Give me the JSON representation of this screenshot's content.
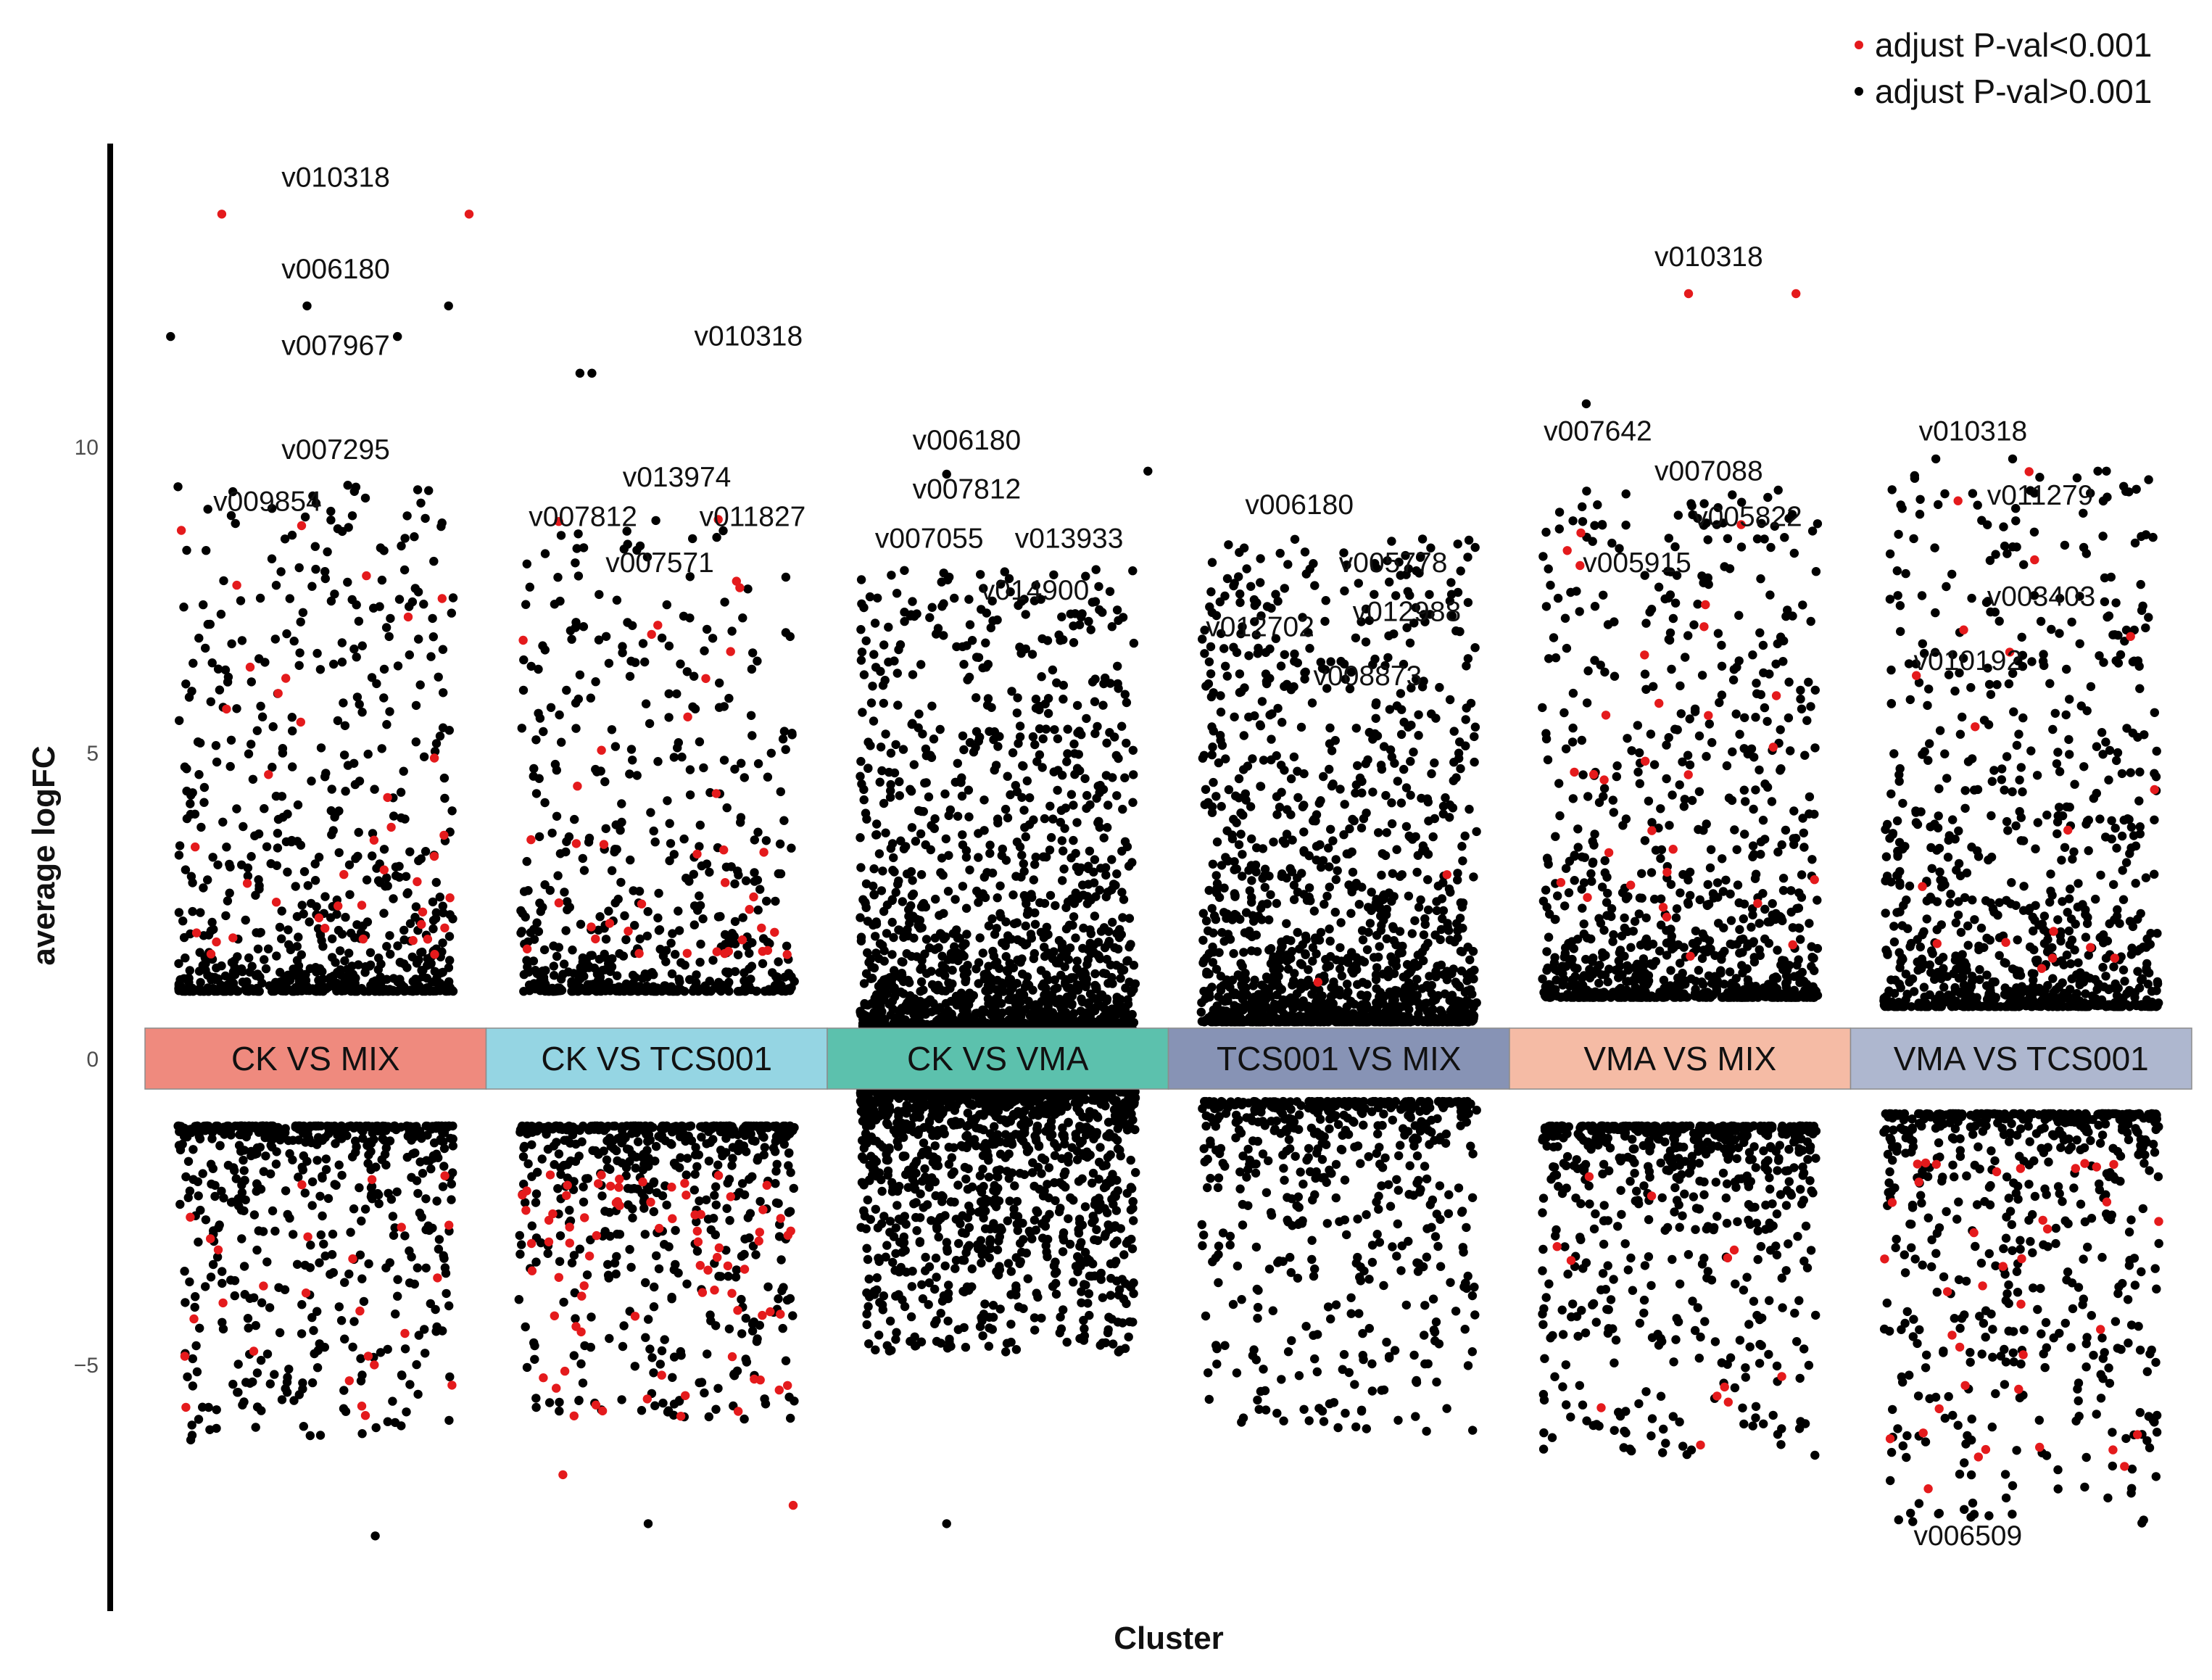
{
  "chart_data": {
    "type": "scatter",
    "title": "",
    "xlabel": "Cluster",
    "ylabel": "average logFC",
    "ylim": [
      -8.8,
      14.8
    ],
    "yticks": [
      -5,
      0,
      5,
      10
    ],
    "grid": false,
    "legend_position": "top-right",
    "legend": [
      {
        "label": "adjust P-val<0.001",
        "color": "#e41a1c"
      },
      {
        "label": "adjust P-val>0.001",
        "color": "#000000"
      }
    ],
    "clusters": [
      {
        "name": "CK VS MIX",
        "color": "#ef8a7e",
        "up_max": 9.4,
        "up_min": 1.1,
        "down_min": -6.3,
        "down_max": -1.1,
        "up_n": 720,
        "down_n": 560,
        "sig_up": 40,
        "sig_down": 26,
        "extreme": [
          {
            "y": 13.8,
            "sig": true,
            "o": -0.55
          },
          {
            "y": 13.8,
            "sig": true,
            "o": 0.9
          },
          {
            "y": 12.3,
            "sig": false,
            "o": -0.05
          },
          {
            "y": 12.3,
            "sig": false,
            "o": 0.78
          },
          {
            "y": 11.8,
            "sig": false,
            "o": -0.85
          },
          {
            "y": 11.8,
            "sig": false,
            "o": 0.48
          },
          {
            "y": -7.8,
            "sig": false,
            "o": 0.35
          }
        ],
        "labels": [
          {
            "text": "v010318",
            "y": 14.25,
            "o": -0.2
          },
          {
            "text": "v006180",
            "y": 12.75,
            "o": -0.2
          },
          {
            "text": "v007967",
            "y": 11.5,
            "o": -0.2
          },
          {
            "text": "v007295",
            "y": 9.8,
            "o": -0.2
          },
          {
            "text": "v009854",
            "y": 8.95,
            "o": -0.6
          }
        ]
      },
      {
        "name": "CK VS TCS001",
        "color": "#95d5e3",
        "up_max": 8.9,
        "up_min": 1.1,
        "down_min": -5.9,
        "down_max": -1.1,
        "up_n": 560,
        "down_n": 560,
        "sig_up": 40,
        "sig_down": 80,
        "extreme": [
          {
            "y": 11.2,
            "sig": false,
            "o": -0.45
          },
          {
            "y": 11.2,
            "sig": false,
            "o": -0.38
          },
          {
            "y": -6.8,
            "sig": true,
            "o": -0.55
          },
          {
            "y": -7.6,
            "sig": false,
            "o": -0.05
          },
          {
            "y": -7.3,
            "sig": true,
            "o": 0.8
          }
        ],
        "labels": [
          {
            "text": "v010318",
            "y": 11.65,
            "o": 0.22
          },
          {
            "text": "v013974",
            "y": 9.35,
            "o": -0.2
          },
          {
            "text": "v007812",
            "y": 8.7,
            "o": -0.75
          },
          {
            "text": "v011827",
            "y": 8.7,
            "o": 0.25
          },
          {
            "text": "v007571",
            "y": 7.95,
            "o": -0.3
          }
        ]
      },
      {
        "name": "CK VS VMA",
        "color": "#5cc1ad",
        "up_max": 8.0,
        "up_min": 0.5,
        "down_min": -4.8,
        "down_max": -0.5,
        "up_n": 1500,
        "down_n": 1400,
        "sig_up": 0,
        "sig_down": 0,
        "extreme": [
          {
            "y": 9.6,
            "sig": false,
            "o": 0.88
          },
          {
            "y": 9.55,
            "sig": false,
            "o": -0.3
          },
          {
            "y": -7.6,
            "sig": false,
            "o": -0.3
          }
        ],
        "labels": [
          {
            "text": "v006180",
            "y": 9.95,
            "o": -0.5
          },
          {
            "text": "v007812",
            "y": 9.15,
            "o": -0.5
          },
          {
            "text": "v007055",
            "y": 8.35,
            "o": -0.72
          },
          {
            "text": "v013933",
            "y": 8.35,
            "o": 0.1
          },
          {
            "text": "v014900",
            "y": 7.5,
            "o": -0.1
          }
        ]
      },
      {
        "name": "TCS001 VS MIX",
        "color": "#8793b5",
        "up_max": 8.5,
        "up_min": 0.6,
        "down_min": -6.1,
        "down_max": -0.7,
        "up_n": 1400,
        "down_n": 560,
        "sig_up": 2,
        "sig_down": 0,
        "extreme": [],
        "labels": [
          {
            "text": "v006180",
            "y": 8.9,
            "o": -0.55
          },
          {
            "text": "v005778",
            "y": 7.95,
            "o": 0.0
          },
          {
            "text": "v012988",
            "y": 7.15,
            "o": 0.08
          },
          {
            "text": "v012702",
            "y": 6.9,
            "o": -0.78
          },
          {
            "text": "v008873",
            "y": 6.1,
            "o": -0.15
          }
        ]
      },
      {
        "name": "VMA VS MIX",
        "color": "#f5bba5",
        "up_max": 9.3,
        "up_min": 1.0,
        "down_min": -6.5,
        "down_max": -1.1,
        "up_n": 900,
        "down_n": 640,
        "sig_up": 30,
        "sig_down": 12,
        "extreme": [
          {
            "y": 12.5,
            "sig": true,
            "o": 0.05
          },
          {
            "y": 12.5,
            "sig": true,
            "o": 0.68
          },
          {
            "y": 10.7,
            "sig": false,
            "o": -0.55
          }
        ],
        "labels": [
          {
            "text": "v010318",
            "y": 12.95,
            "o": -0.15
          },
          {
            "text": "v007642",
            "y": 10.1,
            "o": -0.8
          },
          {
            "text": "v007088",
            "y": 9.45,
            "o": -0.15
          },
          {
            "text": "v005822",
            "y": 8.7,
            "o": 0.08
          },
          {
            "text": "v005915",
            "y": 7.95,
            "o": -0.57
          }
        ]
      },
      {
        "name": "VMA VS TCS001",
        "color": "#aeb7cf",
        "up_max": 9.6,
        "up_min": 0.85,
        "down_min": -7.6,
        "down_max": -0.9,
        "up_n": 880,
        "down_n": 600,
        "sig_up": 18,
        "sig_down": 38,
        "extreme": [
          {
            "y": 9.8,
            "sig": false,
            "o": -0.5
          },
          {
            "y": 9.8,
            "sig": false,
            "o": -0.05
          },
          {
            "y": 9.6,
            "sig": false,
            "o": 0.45
          },
          {
            "y": 9.6,
            "sig": false,
            "o": 0.5
          }
        ],
        "labels": [
          {
            "text": "v010318",
            "y": 10.1,
            "o": -0.6
          },
          {
            "text": "v011279",
            "y": 9.05,
            "o": -0.2
          },
          {
            "text": "v003403",
            "y": 7.4,
            "o": -0.2
          },
          {
            "text": "v010192",
            "y": 6.35,
            "o": -0.63
          },
          {
            "text": "v006509",
            "y": -7.95,
            "o": -0.63
          }
        ]
      }
    ]
  }
}
